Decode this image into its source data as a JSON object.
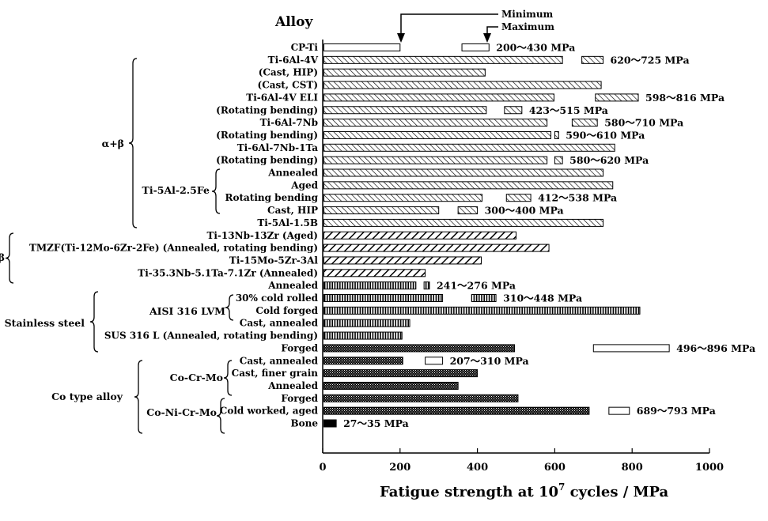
{
  "chart_data": {
    "type": "bar",
    "orientation": "horizontal",
    "title": "Alloy",
    "xlabel_prefix": "Fatigue strength at 10",
    "xlabel_exponent": "7",
    "xlabel_suffix": " cycles / MPa",
    "xlim": [
      0,
      1000
    ],
    "xticks": [
      "0",
      "200",
      "400",
      "600",
      "800",
      "1000"
    ],
    "legend": {
      "minimum": "Minimum",
      "maximum": "Maximum"
    },
    "groups": [
      {
        "label": "α+β"
      },
      {
        "label": "Ti-5Al-2.5Fe"
      },
      {
        "label": "β"
      },
      {
        "label": "Stainless steel"
      },
      {
        "label": "AISI 316 LVM"
      },
      {
        "label": "Co type alloy"
      },
      {
        "label": "Co-Cr-Mo"
      },
      {
        "label": "Co-Ni-Cr-Mo"
      }
    ],
    "rows": [
      {
        "label": "CP-Ti",
        "pattern": "blank",
        "min": 200,
        "max_range": [
          360,
          430
        ],
        "range_label": "200～430 MPa"
      },
      {
        "label": "Ti-6Al-4V",
        "pattern": "hatch",
        "min": 620,
        "max_range": [
          670,
          725
        ],
        "range_label": "620～725 MPa"
      },
      {
        "label": "(Cast, HIP)",
        "pattern": "hatch",
        "min": 420
      },
      {
        "label": "(Cast, CST)",
        "pattern": "hatch",
        "min": 720
      },
      {
        "label": "Ti-6Al-4V ELI",
        "pattern": "hatch",
        "min": 598,
        "max_range": [
          705,
          816
        ],
        "range_label": "598～816 MPa"
      },
      {
        "label": "(Rotating bending)",
        "pattern": "hatch",
        "min": 423,
        "max_range": [
          470,
          515
        ],
        "range_label": "423～515 MPa"
      },
      {
        "label": "Ti-6Al-7Nb",
        "pattern": "hatch",
        "min": 580,
        "max_range": [
          645,
          710
        ],
        "range_label": "580～710 MPa"
      },
      {
        "label": "(Rotating bending)",
        "pattern": "hatch",
        "min": 590,
        "max_range": [
          600,
          610
        ],
        "range_label": "590～610 MPa"
      },
      {
        "label": "Ti-6Al-7Nb-1Ta",
        "pattern": "hatch",
        "min": 755
      },
      {
        "label": "(Rotating bending)",
        "pattern": "hatch",
        "min": 580,
        "max_range": [
          600,
          620
        ],
        "range_label": "580～620 MPa"
      },
      {
        "label": "Annealed",
        "pattern": "hatch",
        "min": 725
      },
      {
        "label": "Aged",
        "pattern": "hatch",
        "min": 750
      },
      {
        "label": "Rotating bending",
        "pattern": "hatch",
        "min": 412,
        "max_range": [
          475,
          538
        ],
        "range_label": "412～538 MPa"
      },
      {
        "label": "Cast, HIP",
        "pattern": "hatch",
        "min": 300,
        "max_range": [
          350,
          400
        ],
        "range_label": "300～400 MPa"
      },
      {
        "label": "Ti-5Al-1.5B",
        "pattern": "hatch",
        "min": 725
      },
      {
        "label": "Ti-13Nb-13Zr (Aged)",
        "pattern": "stripe",
        "min": 500
      },
      {
        "label": "TMZF(Ti-12Mo-6Zr-2Fe) (Annealed, rotating bending)",
        "pattern": "stripe",
        "min": 585
      },
      {
        "label": "Ti-15Mo-5Zr-3Al",
        "pattern": "stripe",
        "min": 410
      },
      {
        "label": "Ti-35.3Nb-5.1Ta-7.1Zr (Annealed)",
        "pattern": "stripe",
        "min": 265
      },
      {
        "label": "Annealed",
        "pattern": "vert",
        "min": 241,
        "max_range": [
          262,
          276
        ],
        "range_label": "241～276 MPa"
      },
      {
        "label": "30% cold rolled",
        "pattern": "vert",
        "min": 310,
        "max_range": [
          385,
          448
        ],
        "range_label": "310～448 MPa"
      },
      {
        "label": "Cold forged",
        "pattern": "vert",
        "min": 820
      },
      {
        "label": "Cast, annealed",
        "pattern": "vert",
        "min": 225
      },
      {
        "label": "SUS 316 L (Annealed, rotating bending)",
        "pattern": "vert",
        "min": 205
      },
      {
        "label": "Forged",
        "pattern": "dots",
        "min": 496,
        "max_range": [
          700,
          896
        ],
        "max_pattern": "blank",
        "range_label": "496～896 MPa"
      },
      {
        "label": "Cast, annealed",
        "pattern": "dots",
        "min": 207,
        "max_range": [
          265,
          310
        ],
        "max_pattern": "blank",
        "range_label": "207～310 MPa"
      },
      {
        "label": "Cast, finer grain",
        "pattern": "dots",
        "min": 400
      },
      {
        "label": "Annealed",
        "pattern": "dots",
        "min": 350
      },
      {
        "label": "Forged",
        "pattern": "dots",
        "min": 505
      },
      {
        "label": "Cold worked, aged",
        "pattern": "dots",
        "min": 689,
        "max_range": [
          740,
          793
        ],
        "max_pattern": "blank",
        "range_label": "689～793 MPa"
      },
      {
        "label": "Bone",
        "pattern": "solid",
        "min": 27,
        "max_range": [
          27,
          35
        ],
        "range_label": "27～35 MPa"
      }
    ]
  }
}
